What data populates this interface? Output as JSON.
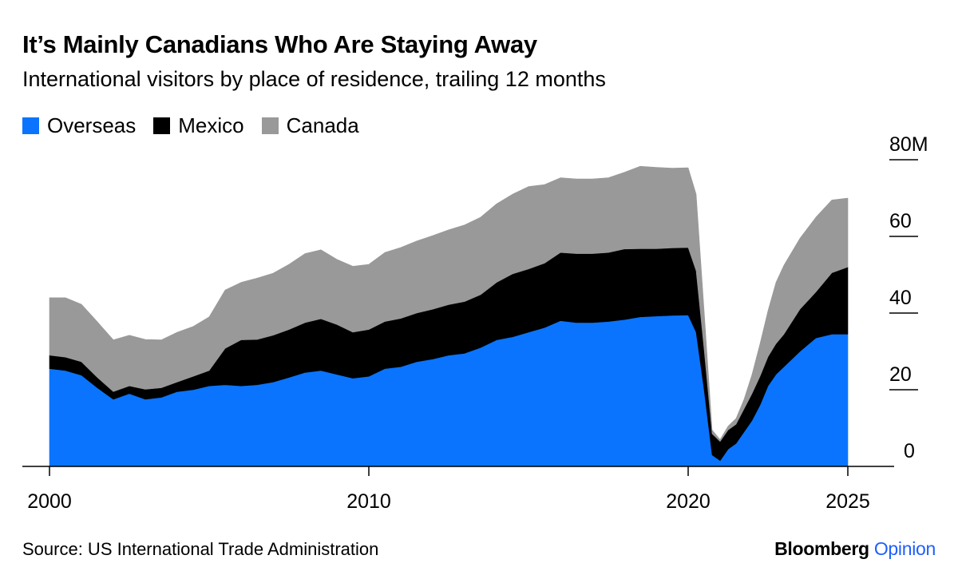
{
  "title": "It’s Mainly Canadians Who Are Staying Away",
  "subtitle": "International visitors by place of residence, trailing 12 months",
  "source": "Source: US International Trade Administration",
  "brand": {
    "name": "Bloomberg",
    "product": "Opinion",
    "product_color": "#1e5fff"
  },
  "chart_data": {
    "type": "area",
    "stacked": true,
    "x_unit": "year",
    "y_unit": "visitors (millions)",
    "xlim": [
      2000,
      2025
    ],
    "ylim": [
      0,
      80
    ],
    "x_ticks": [
      {
        "value": 2000,
        "label": "2000"
      },
      {
        "value": 2010,
        "label": "2010"
      },
      {
        "value": 2020,
        "label": "2020"
      },
      {
        "value": 2025,
        "label": "2025"
      }
    ],
    "y_ticks": [
      {
        "value": 0,
        "label": "0"
      },
      {
        "value": 20,
        "label": "20"
      },
      {
        "value": 40,
        "label": "40"
      },
      {
        "value": 60,
        "label": "60"
      },
      {
        "value": 80,
        "label": "80M"
      }
    ],
    "grid": false,
    "legend_position": "top-left",
    "x": [
      2000.0,
      2000.5,
      2001.0,
      2001.5,
      2002.0,
      2002.5,
      2003.0,
      2003.5,
      2004.0,
      2004.5,
      2005.0,
      2005.5,
      2006.0,
      2006.5,
      2007.0,
      2007.5,
      2008.0,
      2008.5,
      2009.0,
      2009.5,
      2010.0,
      2010.5,
      2011.0,
      2011.5,
      2012.0,
      2012.5,
      2013.0,
      2013.5,
      2014.0,
      2014.5,
      2015.0,
      2015.5,
      2016.0,
      2016.5,
      2017.0,
      2017.5,
      2018.0,
      2018.5,
      2019.0,
      2019.5,
      2020.0,
      2020.25,
      2020.5,
      2020.75,
      2021.0,
      2021.25,
      2021.5,
      2021.75,
      2022.0,
      2022.25,
      2022.5,
      2022.75,
      2023.0,
      2023.5,
      2024.0,
      2024.5,
      2025.0
    ],
    "series": [
      {
        "name": "Overseas",
        "color": "#0a74ff",
        "values": [
          25.5,
          25.0,
          23.8,
          20.5,
          17.5,
          19.0,
          17.5,
          18.0,
          19.5,
          20.0,
          21.0,
          21.3,
          21.0,
          21.3,
          22.0,
          23.2,
          24.5,
          25.0,
          24.0,
          23.0,
          23.5,
          25.5,
          26.0,
          27.3,
          28.0,
          29.0,
          29.5,
          31.0,
          33.0,
          33.8,
          35.0,
          36.2,
          38.0,
          37.5,
          37.5,
          37.8,
          38.3,
          39.0,
          39.2,
          39.4,
          39.5,
          35.0,
          20.0,
          3.0,
          1.5,
          4.5,
          6.0,
          9.0,
          12.0,
          16.0,
          21.0,
          24.0,
          26.0,
          30.0,
          33.5,
          34.5,
          34.5
        ]
      },
      {
        "name": "Mexico",
        "color": "#000000",
        "values": [
          3.5,
          3.5,
          3.5,
          2.7,
          2.0,
          2.0,
          2.6,
          2.5,
          2.5,
          3.5,
          4.0,
          9.5,
          12.0,
          11.8,
          12.2,
          12.5,
          13.0,
          13.5,
          13.0,
          12.0,
          12.2,
          12.3,
          12.6,
          12.7,
          13.0,
          13.2,
          13.5,
          13.8,
          15.0,
          16.4,
          16.5,
          16.8,
          17.8,
          18.0,
          18.0,
          18.0,
          18.4,
          17.8,
          17.6,
          17.6,
          17.6,
          16.0,
          10.5,
          5.5,
          5.0,
          5.0,
          5.0,
          6.0,
          7.0,
          7.5,
          7.6,
          8.0,
          8.5,
          11.0,
          12.0,
          16.0,
          17.5
        ]
      },
      {
        "name": "Canada",
        "color": "#999999",
        "values": [
          15.0,
          15.5,
          15.0,
          14.5,
          13.5,
          13.2,
          13.0,
          12.5,
          13.0,
          13.0,
          14.0,
          15.2,
          15.0,
          16.0,
          16.2,
          17.0,
          18.0,
          18.0,
          17.0,
          17.2,
          17.0,
          18.0,
          18.5,
          18.8,
          19.2,
          19.5,
          20.0,
          20.2,
          20.5,
          20.8,
          21.5,
          20.5,
          19.5,
          19.5,
          19.5,
          19.5,
          20.0,
          21.5,
          21.2,
          20.8,
          20.8,
          20.0,
          10.0,
          1.0,
          0.5,
          1.0,
          1.5,
          2.5,
          5.0,
          8.5,
          12.0,
          16.0,
          18.0,
          18.5,
          19.5,
          19.0,
          18.0
        ]
      }
    ]
  }
}
